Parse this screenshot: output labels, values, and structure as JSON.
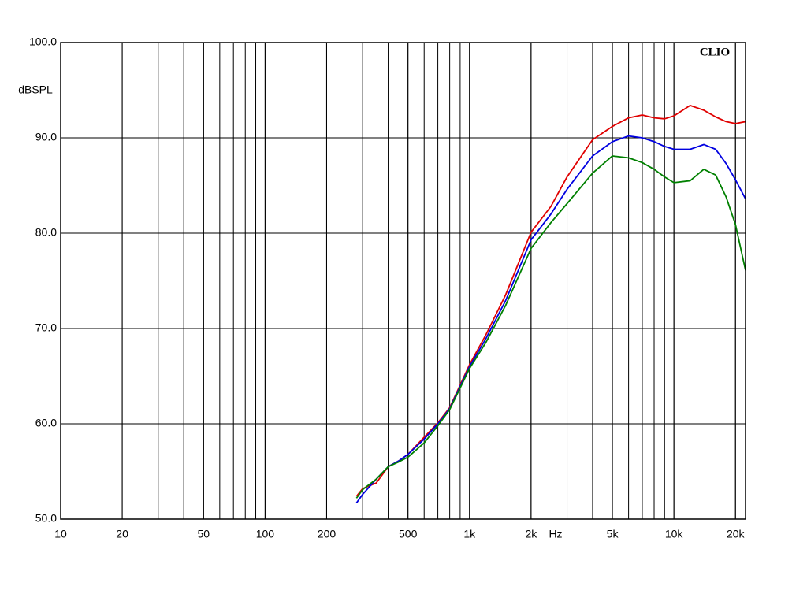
{
  "chart_data": {
    "type": "line",
    "annotation": "CLIO",
    "ylabel": "dBSPL",
    "xlabel": "Hz",
    "xscale": "log",
    "grid": true,
    "xlim": [
      10,
      22400
    ],
    "ylim": [
      50,
      100
    ],
    "xticks": [
      10,
      20,
      50,
      100,
      200,
      500,
      {
        "value": 1000,
        "label": "1k"
      },
      {
        "value": 2000,
        "label": "2k"
      },
      {
        "value": 5000,
        "label": "5k"
      },
      {
        "value": 10000,
        "label": "10k"
      },
      {
        "value": 20000,
        "label": "20k"
      }
    ],
    "xgrid": [
      20,
      30,
      40,
      50,
      60,
      70,
      80,
      90,
      100,
      200,
      300,
      400,
      500,
      600,
      700,
      800,
      900,
      1000,
      2000,
      3000,
      4000,
      5000,
      6000,
      7000,
      8000,
      9000,
      10000,
      20000
    ],
    "yticks": [
      {
        "value": 50,
        "label": "50.0"
      },
      {
        "value": 60,
        "label": "60.0"
      },
      {
        "value": 70,
        "label": "70.0"
      },
      {
        "value": 80,
        "label": "80.0"
      },
      {
        "value": 90,
        "label": "90.0"
      },
      {
        "value": 100,
        "label": "100.0"
      }
    ],
    "x": [
      280,
      300,
      350,
      400,
      450,
      500,
      600,
      700,
      800,
      1000,
      1200,
      1500,
      2000,
      2500,
      3000,
      4000,
      5000,
      6000,
      7000,
      8000,
      9000,
      10000,
      12000,
      14000,
      16000,
      18000,
      20000,
      22400
    ],
    "series": [
      {
        "color": "#e00000",
        "values": [
          52.4,
          53.2,
          53.8,
          55.5,
          56.1,
          56.8,
          58.6,
          60.1,
          61.7,
          66.2,
          69.3,
          73.5,
          80.1,
          82.8,
          85.9,
          89.8,
          91.2,
          92.1,
          92.4,
          92.1,
          92.0,
          92.3,
          93.4,
          92.9,
          92.2,
          91.7,
          91.5,
          91.7
        ]
      },
      {
        "color": "#0000e0",
        "values": [
          51.7,
          52.6,
          54.2,
          55.5,
          56.1,
          56.8,
          58.4,
          60.0,
          61.6,
          66.0,
          68.9,
          72.9,
          79.3,
          82.0,
          84.6,
          88.1,
          89.6,
          90.2,
          90.0,
          89.6,
          89.1,
          88.8,
          88.8,
          89.3,
          88.8,
          87.3,
          85.6,
          83.6
        ]
      },
      {
        "color": "#008000",
        "values": [
          52.2,
          53.1,
          54.2,
          55.5,
          56.0,
          56.5,
          58.0,
          59.8,
          61.5,
          65.8,
          68.5,
          72.4,
          78.4,
          81.1,
          83.1,
          86.3,
          88.1,
          87.9,
          87.4,
          86.7,
          85.9,
          85.3,
          85.5,
          86.7,
          86.1,
          83.8,
          80.9,
          76.1
        ]
      }
    ]
  }
}
